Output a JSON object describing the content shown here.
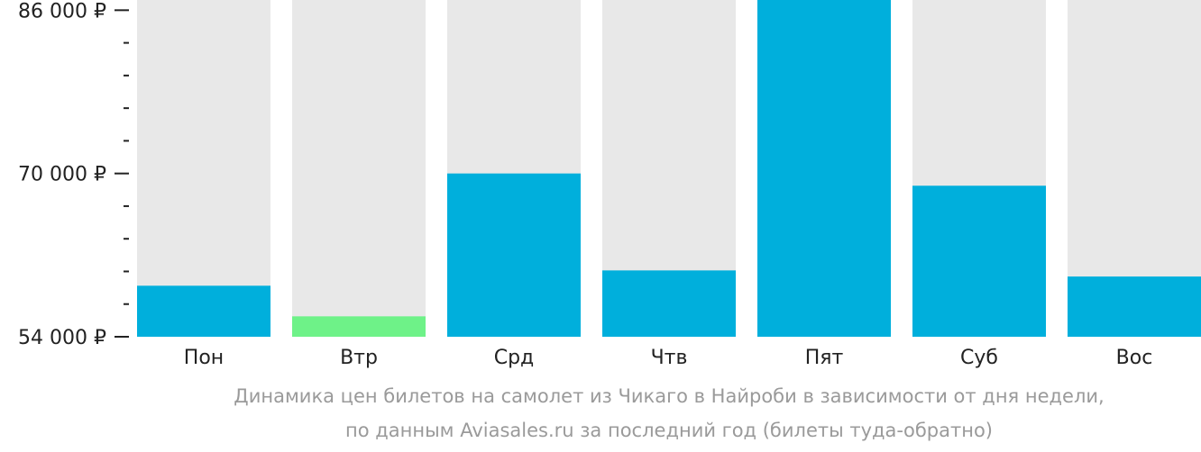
{
  "chart_data": {
    "type": "bar",
    "categories": [
      "Пон",
      "Втр",
      "Срд",
      "Чтв",
      "Пят",
      "Суб",
      "Вос"
    ],
    "values": [
      59000,
      56000,
      70000,
      60500,
      87000,
      68800,
      59900
    ],
    "ylim": [
      54000,
      87000
    ],
    "yticks_labeled": [
      {
        "value": 54000,
        "label": "54 000 ₽"
      },
      {
        "value": 70000,
        "label": "70 000 ₽"
      },
      {
        "value": 86000,
        "label": "86 000 ₽"
      }
    ],
    "yticks_minor": [
      57200,
      60400,
      63600,
      66800,
      73200,
      76400,
      79600,
      82800
    ],
    "bar_color": "#00afdc",
    "highlight_color": "#6ef288",
    "highlight_index": 1,
    "track_color": "#e8e8e8",
    "grid": false
  },
  "caption": {
    "line1": "Динамика цен билетов на самолет из Чикаго в Найроби в зависимости от дня недели,",
    "line2": "по данным Aviasales.ru за последний год (билеты туда-обратно)"
  }
}
